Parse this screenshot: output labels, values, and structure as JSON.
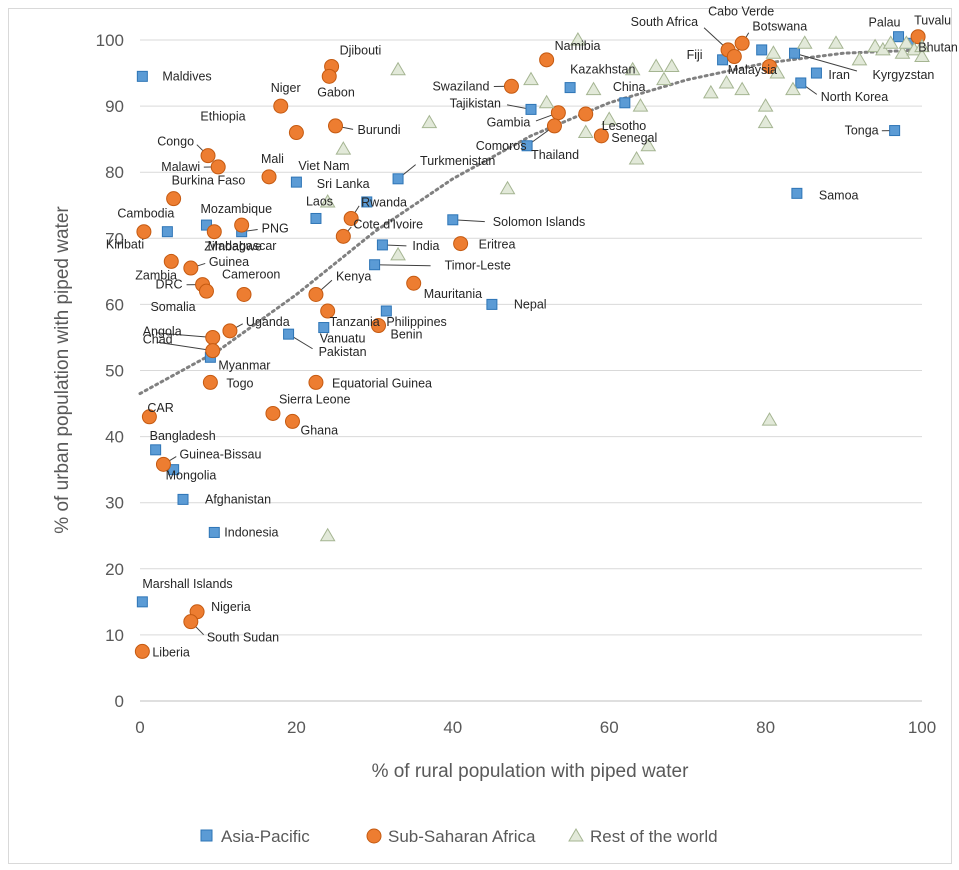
{
  "chart_data": {
    "type": "scatter",
    "xlabel": "% of rural population with piped water",
    "ylabel": "% of urban population with piped water",
    "xlim": [
      0,
      100
    ],
    "ylim": [
      0,
      100
    ],
    "x_ticks": [
      0,
      20,
      40,
      60,
      80,
      100
    ],
    "y_ticks": [
      0,
      10,
      20,
      30,
      40,
      50,
      60,
      70,
      80,
      90,
      100
    ],
    "grid": "horizontal",
    "legend_position": "bottom",
    "trendline": {
      "style": "dotted",
      "color": "#808080",
      "approx_points": [
        [
          0,
          46.5
        ],
        [
          10,
          53
        ],
        [
          20,
          61.5
        ],
        [
          30,
          71
        ],
        [
          40,
          79
        ],
        [
          50,
          85.5
        ],
        [
          60,
          90.5
        ],
        [
          70,
          94
        ],
        [
          80,
          96.5
        ],
        [
          90,
          98
        ],
        [
          100,
          98.5
        ]
      ]
    },
    "series": [
      {
        "name": "Asia-Pacific",
        "marker": "square",
        "color": "#5b9bd5",
        "points": [
          {
            "label": "Maldives",
            "x": 0.3,
            "y": 94.5
          },
          {
            "label": "Viet Nam",
            "x": 20,
            "y": 78.5
          },
          {
            "label": "Sri Lanka",
            "x": 29,
            "y": 75.5
          },
          {
            "label": "Laos",
            "x": 22.5,
            "y": 73
          },
          {
            "label": "Cambodia",
            "x": 3.5,
            "y": 71
          },
          {
            "label": "Mozambique",
            "x": 8.5,
            "y": 72
          },
          {
            "label": "PNG",
            "x": 13,
            "y": 71
          },
          {
            "label": "Turkmenistan",
            "x": 33,
            "y": 79
          },
          {
            "label": "Solomon Islands",
            "x": 40,
            "y": 72.8
          },
          {
            "label": "India",
            "x": 31,
            "y": 69
          },
          {
            "label": "Timor-Leste",
            "x": 30,
            "y": 66
          },
          {
            "label": "Philippines",
            "x": 31.5,
            "y": 59
          },
          {
            "label": "Nepal",
            "x": 45,
            "y": 60
          },
          {
            "label": "Pakistan",
            "x": 19,
            "y": 55.5
          },
          {
            "label": "Vanuatu",
            "x": 23.5,
            "y": 56.5
          },
          {
            "label": "Myanmar",
            "x": 9,
            "y": 52
          },
          {
            "label": "Bangladesh",
            "x": 2,
            "y": 38
          },
          {
            "label": "Mongolia",
            "x": 4.3,
            "y": 35
          },
          {
            "label": "Afghanistan",
            "x": 5.5,
            "y": 30.5
          },
          {
            "label": "Indonesia",
            "x": 9.5,
            "y": 25.5
          },
          {
            "label": "Marshall Islands",
            "x": 0.3,
            "y": 15
          },
          {
            "label": "Tajikistan",
            "x": 50,
            "y": 89.5
          },
          {
            "label": "Kazakhstan",
            "x": 55,
            "y": 92.8
          },
          {
            "label": "China",
            "x": 62,
            "y": 90.5
          },
          {
            "label": "Thailand",
            "x": 49.5,
            "y": 84
          },
          {
            "label": "Fiji",
            "x": 74.5,
            "y": 97
          },
          {
            "label": "Malaysia",
            "x": 79.5,
            "y": 98.5
          },
          {
            "label": "Iran",
            "x": 86.5,
            "y": 95
          },
          {
            "label": "Kyrgyzstan",
            "x": 83.7,
            "y": 98
          },
          {
            "label": "North Korea",
            "x": 84.5,
            "y": 93.5
          },
          {
            "label": "Tonga",
            "x": 96.5,
            "y": 86.3
          },
          {
            "label": "Samoa",
            "x": 84,
            "y": 76.8
          },
          {
            "label": "Palau",
            "x": 97,
            "y": 100.5
          },
          {
            "label": "Bhutan",
            "x": 98.5,
            "y": 99.5
          }
        ]
      },
      {
        "name": "Sub-Saharan Africa",
        "marker": "circle",
        "color": "#ed7d31",
        "points": [
          {
            "label": "Djibouti",
            "x": 24.5,
            "y": 96
          },
          {
            "label": "Gabon",
            "x": 24.2,
            "y": 94.5
          },
          {
            "label": "Niger",
            "x": 18,
            "y": 90
          },
          {
            "label": "Ethiopia",
            "x": 20,
            "y": 86
          },
          {
            "label": "Burundi",
            "x": 25,
            "y": 87
          },
          {
            "label": "Congo",
            "x": 8.7,
            "y": 82.5
          },
          {
            "label": "Malawi",
            "x": 10,
            "y": 80.8
          },
          {
            "label": "Mali",
            "x": 16.5,
            "y": 79.3
          },
          {
            "label": "Burkina Faso",
            "x": 4.3,
            "y": 76
          },
          {
            "label": "Zimbabwe",
            "x": 9.5,
            "y": 71
          },
          {
            "label": "Madagascar",
            "x": 13,
            "y": 72
          },
          {
            "label": "Kiribati",
            "x": 0.5,
            "y": 71
          },
          {
            "label": "Rwanda",
            "x": 27,
            "y": 73
          },
          {
            "label": "Cote d'Ivoire",
            "x": 26,
            "y": 70.3
          },
          {
            "label": "Zambia",
            "x": 4,
            "y": 66.5
          },
          {
            "label": "Guinea",
            "x": 6.5,
            "y": 65.5
          },
          {
            "label": "Cameroon",
            "x": 13.3,
            "y": 61.5
          },
          {
            "label": "DRC",
            "x": 8,
            "y": 63
          },
          {
            "label": "Somalia",
            "x": 8.5,
            "y": 62
          },
          {
            "label": "Kenya",
            "x": 22.5,
            "y": 61.5
          },
          {
            "label": "Tanzania",
            "x": 24,
            "y": 59
          },
          {
            "label": "Mauritania",
            "x": 35,
            "y": 63.2
          },
          {
            "label": "Eritrea",
            "x": 41,
            "y": 69.2
          },
          {
            "label": "Benin",
            "x": 30.5,
            "y": 56.8
          },
          {
            "label": "Uganda",
            "x": 11.5,
            "y": 56
          },
          {
            "label": "Angola",
            "x": 9.3,
            "y": 55
          },
          {
            "label": "Chad",
            "x": 9.3,
            "y": 53
          },
          {
            "label": "Togo",
            "x": 9,
            "y": 48.2
          },
          {
            "label": "Equatorial Guinea",
            "x": 22.5,
            "y": 48.2
          },
          {
            "label": "Sierra Leone",
            "x": 17,
            "y": 43.5
          },
          {
            "label": "Ghana",
            "x": 19.5,
            "y": 42.3
          },
          {
            "label": "CAR",
            "x": 1.2,
            "y": 43
          },
          {
            "label": "Guinea-Bissau",
            "x": 3,
            "y": 35.8
          },
          {
            "label": "Nigeria",
            "x": 7.3,
            "y": 13.5
          },
          {
            "label": "South Sudan",
            "x": 6.5,
            "y": 12
          },
          {
            "label": "Liberia",
            "x": 0.3,
            "y": 7.5
          },
          {
            "label": "Namibia",
            "x": 52,
            "y": 97
          },
          {
            "label": "Swaziland",
            "x": 47.5,
            "y": 93
          },
          {
            "label": "Gambia",
            "x": 53.5,
            "y": 89
          },
          {
            "label": "Comoros",
            "x": 53,
            "y": 87
          },
          {
            "label": "Lesotho",
            "x": 57,
            "y": 88.8
          },
          {
            "label": "Senegal",
            "x": 59,
            "y": 85.5
          },
          {
            "label": "South Africa",
            "x": 75.2,
            "y": 98.5
          },
          {
            "label": "Cabo Verde",
            "x": 77,
            "y": 99.5
          },
          {
            "label": "Botswana",
            "x": 76,
            "y": 97.5
          },
          {
            "label": "Tuvalu",
            "x": 99.5,
            "y": 100.5
          },
          {
            "label": "",
            "x": 80.5,
            "y": 96
          }
        ]
      },
      {
        "name": "Rest of the world",
        "marker": "triangle",
        "color": "#e2e9d9",
        "points": [
          {
            "x": 33,
            "y": 95.5
          },
          {
            "x": 37,
            "y": 87.5
          },
          {
            "x": 26,
            "y": 83.5
          },
          {
            "x": 24,
            "y": 75.5
          },
          {
            "x": 33,
            "y": 67.5
          },
          {
            "x": 47,
            "y": 77.5
          },
          {
            "x": 24,
            "y": 25
          },
          {
            "x": 80.5,
            "y": 42.5
          },
          {
            "x": 50,
            "y": 94
          },
          {
            "x": 52,
            "y": 90.5
          },
          {
            "x": 56,
            "y": 100
          },
          {
            "x": 58,
            "y": 92.5
          },
          {
            "x": 57,
            "y": 86
          },
          {
            "x": 60,
            "y": 88
          },
          {
            "x": 63,
            "y": 95.5
          },
          {
            "x": 63.5,
            "y": 82
          },
          {
            "x": 65,
            "y": 84
          },
          {
            "x": 66,
            "y": 96
          },
          {
            "x": 67,
            "y": 94
          },
          {
            "x": 68,
            "y": 96
          },
          {
            "x": 64,
            "y": 90
          },
          {
            "x": 73,
            "y": 92
          },
          {
            "x": 75,
            "y": 93.5
          },
          {
            "x": 77,
            "y": 92.5
          },
          {
            "x": 80,
            "y": 87.5
          },
          {
            "x": 80,
            "y": 90
          },
          {
            "x": 81,
            "y": 98
          },
          {
            "x": 81.5,
            "y": 95
          },
          {
            "x": 83.5,
            "y": 92.5
          },
          {
            "x": 85,
            "y": 99.5
          },
          {
            "x": 89,
            "y": 99.5
          },
          {
            "x": 92,
            "y": 97
          },
          {
            "x": 94,
            "y": 99
          },
          {
            "x": 95,
            "y": 98.5
          },
          {
            "x": 96,
            "y": 99.5
          },
          {
            "x": 97.5,
            "y": 98
          },
          {
            "x": 98,
            "y": 99.5
          },
          {
            "x": 99,
            "y": 98.5
          },
          {
            "x": 100,
            "y": 97.5
          },
          {
            "x": 100,
            "y": 99
          }
        ]
      }
    ]
  }
}
